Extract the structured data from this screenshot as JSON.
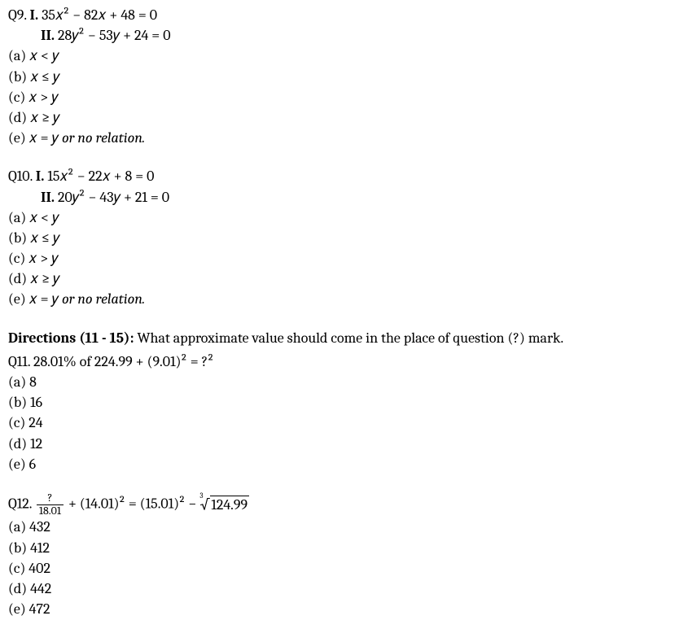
{
  "q9": {
    "label": "Q9.",
    "eq1_label": "I.",
    "eq1": "35𝑥² − 82𝑥 + 48 = 0",
    "eq2_label": "II.",
    "eq2": "28𝑦² − 53𝑦 + 24 = 0",
    "opts": {
      "a": "(a) 𝑥 < 𝑦",
      "b": "(b) 𝑥 ≤ 𝑦",
      "c": "(c) 𝑥 > 𝑦",
      "d": "(d) 𝑥 ≥ 𝑦",
      "e_prefix": "(e) 𝑥 = 𝑦 ",
      "e_italic": "or no relation."
    }
  },
  "q10": {
    "label": "Q10.",
    "eq1_label": "I.",
    "eq1": "15𝑥² − 22𝑥 + 8 = 0",
    "eq2_label": "II.",
    "eq2": "20𝑦² − 43𝑦 + 21 = 0",
    "opts": {
      "a": "(a) 𝑥 < 𝑦",
      "b": "(b) 𝑥 ≤ 𝑦",
      "c": "(c) 𝑥 > 𝑦",
      "d": "(d) 𝑥 ≥ 𝑦",
      "e_prefix": "(e) 𝑥 = 𝑦 ",
      "e_italic": "or no relation."
    }
  },
  "directions": {
    "label": "Directions (11 - 15):",
    "text": " What approximate value should come in the place of question (?) mark."
  },
  "q11": {
    "label": "Q11. ",
    "expr": " 28.01% of 224.99 +  (9.01)² = ?²",
    "opts": {
      "a": "(a) 8",
      "b": "(b) 16",
      "c": "(c) 24",
      "d": "(d) 12",
      "e": "(e) 6"
    }
  },
  "q12": {
    "label": "Q12. ",
    "frac_num": "?",
    "frac_den": "18.01",
    "mid": " + (14.01)² = (15.01)² − ",
    "root_idx": "3",
    "root_rad": "124.99",
    "opts": {
      "a": "(a) 432",
      "b": "(b) 412",
      "c": "(c) 402",
      "d": "(d) 442",
      "e": "(e) 472"
    }
  }
}
